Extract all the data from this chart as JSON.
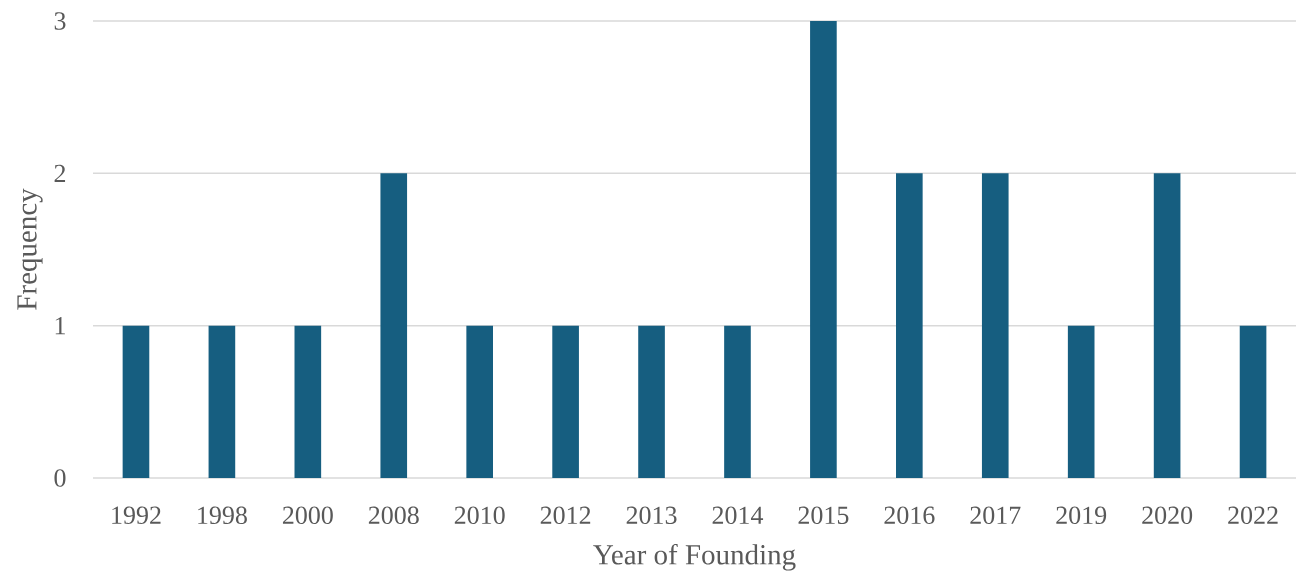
{
  "chart_data": {
    "type": "bar",
    "xlabel": "Year of Founding",
    "ylabel": "Frequency",
    "categories": [
      "1992",
      "1998",
      "2000",
      "2008",
      "2010",
      "2012",
      "2013",
      "2014",
      "2015",
      "2016",
      "2017",
      "2019",
      "2020",
      "2022"
    ],
    "values": [
      1,
      1,
      1,
      2,
      1,
      1,
      1,
      1,
      3,
      2,
      2,
      1,
      2,
      1
    ],
    "color": "#165e80",
    "ylim": [
      0,
      3
    ],
    "yticks": [
      0,
      1,
      2,
      3
    ],
    "grid": "y"
  }
}
